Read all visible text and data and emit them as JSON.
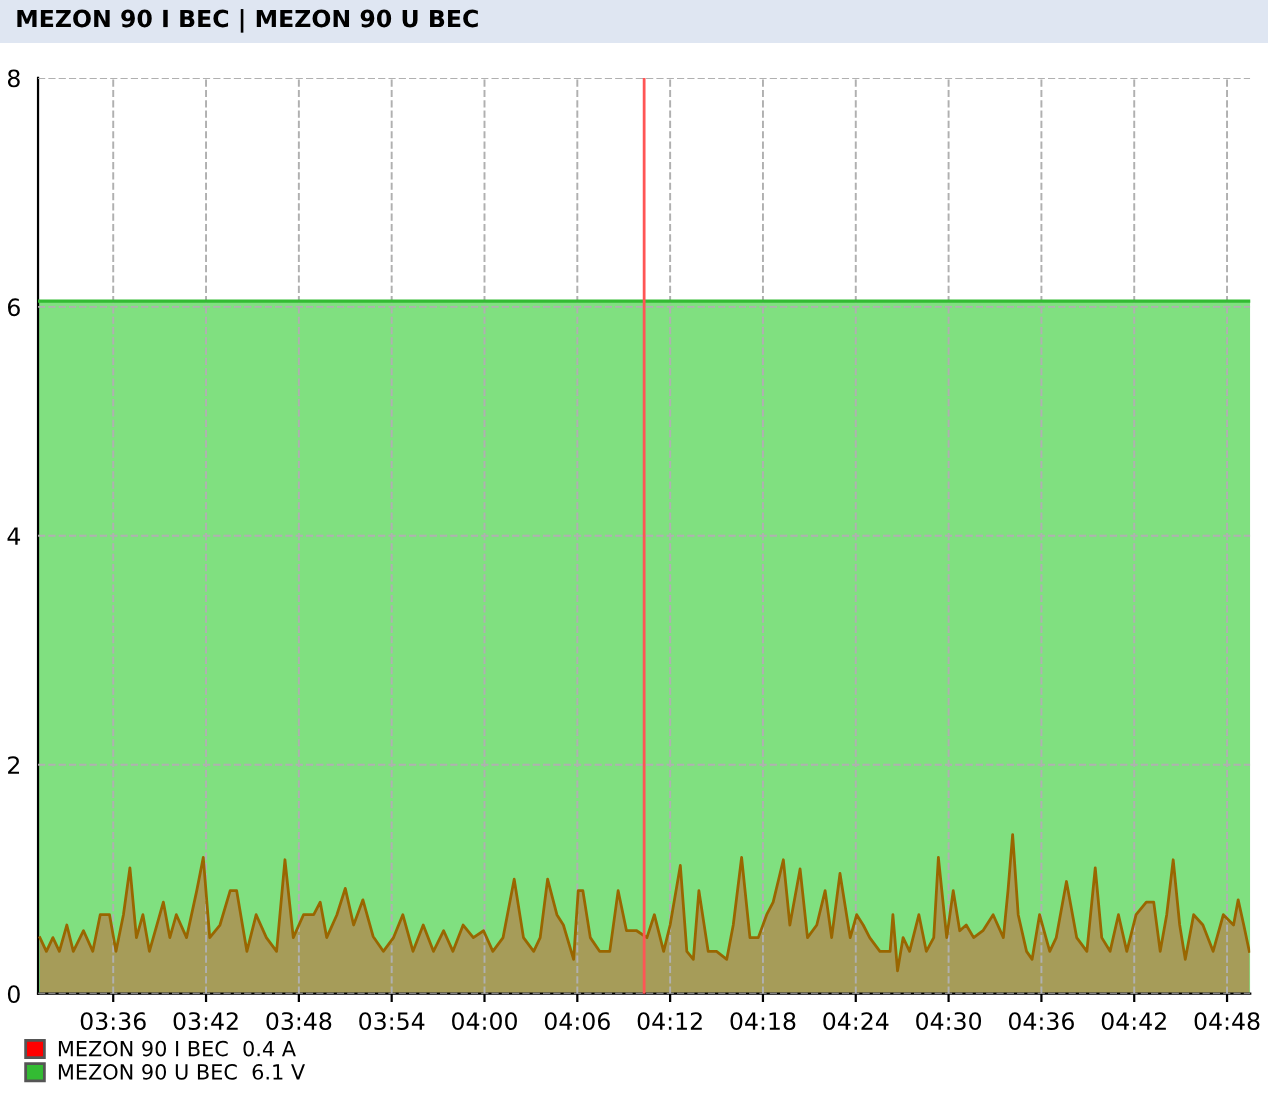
{
  "chart_data": {
    "type": "area",
    "title": "MEZON 90 I BEC | MEZON 90 U BEC",
    "xlim": [
      3.519,
      4.825
    ],
    "ylim": [
      0,
      8
    ],
    "yticks": [
      0,
      2,
      4,
      6,
      8
    ],
    "xticks": [
      {
        "value": 3.6,
        "label": "03:36"
      },
      {
        "value": 3.7,
        "label": "03:42"
      },
      {
        "value": 3.8,
        "label": "03:48"
      },
      {
        "value": 3.9,
        "label": "03:54"
      },
      {
        "value": 4.0,
        "label": "04:00"
      },
      {
        "value": 4.1,
        "label": "04:06"
      },
      {
        "value": 4.2,
        "label": "04:12"
      },
      {
        "value": 4.3,
        "label": "04:18"
      },
      {
        "value": 4.4,
        "label": "04:24"
      },
      {
        "value": 4.5,
        "label": "04:30"
      },
      {
        "value": 4.6,
        "label": "04:36"
      },
      {
        "value": 4.7,
        "label": "04:42"
      },
      {
        "value": 4.8,
        "label": "04:48"
      }
    ],
    "grid": true,
    "legend": "bottom left",
    "ref_lines": [
      {
        "axis": "x",
        "value": 4.172,
        "color": "#ff5555"
      }
    ],
    "series": [
      {
        "name": "MEZON 90 U BEC  6.1 V",
        "color": "#33bb33",
        "x": [
          3.519,
          4.825
        ],
        "values": [
          6.05,
          6.05
        ]
      },
      {
        "name": "MEZON 90 I BEC  0.4 A",
        "color": "#ff0000",
        "x": [
          3.521,
          3.528,
          3.535,
          3.542,
          3.55,
          3.557,
          3.568,
          3.578,
          3.586,
          3.596,
          3.603,
          3.611,
          3.618,
          3.625,
          3.632,
          3.639,
          3.647,
          3.654,
          3.661,
          3.668,
          3.679,
          3.69,
          3.697,
          3.704,
          3.715,
          3.726,
          3.733,
          3.744,
          3.754,
          3.765,
          3.776,
          3.785,
          3.794,
          3.805,
          3.816,
          3.823,
          3.83,
          3.841,
          3.85,
          3.859,
          3.869,
          3.88,
          3.891,
          3.902,
          3.912,
          3.923,
          3.934,
          3.945,
          3.956,
          3.966,
          3.977,
          3.988,
          3.999,
          4.009,
          4.02,
          4.032,
          4.042,
          4.053,
          4.06,
          4.068,
          4.078,
          4.085,
          4.096,
          4.101,
          4.106,
          4.114,
          4.124,
          4.135,
          4.144,
          4.153,
          4.164,
          4.175,
          4.183,
          4.193,
          4.2,
          4.211,
          4.218,
          4.225,
          4.231,
          4.241,
          4.25,
          4.261,
          4.268,
          4.277,
          4.286,
          4.295,
          4.304,
          4.311,
          4.322,
          4.329,
          4.34,
          4.348,
          4.358,
          4.367,
          4.374,
          4.383,
          4.394,
          4.401,
          4.408,
          4.415,
          4.426,
          4.437,
          4.44,
          4.445,
          4.451,
          4.458,
          4.468,
          4.476,
          4.484,
          4.489,
          4.498,
          4.505,
          4.512,
          4.519,
          4.527,
          4.537,
          4.548,
          4.559,
          4.564,
          4.569,
          4.575,
          4.584,
          4.59,
          4.598,
          4.609,
          4.616,
          4.627,
          4.638,
          4.649,
          4.658,
          4.665,
          4.674,
          4.683,
          4.692,
          4.702,
          4.713,
          4.721,
          4.728,
          4.735,
          4.742,
          4.749,
          4.755,
          4.764,
          4.774,
          4.785,
          4.796,
          4.807,
          4.812,
          4.818,
          4.824
        ],
        "values": [
          0.49,
          0.37,
          0.49,
          0.37,
          0.6,
          0.37,
          0.55,
          0.37,
          0.69,
          0.69,
          0.37,
          0.69,
          1.1,
          0.49,
          0.69,
          0.37,
          0.6,
          0.8,
          0.49,
          0.69,
          0.49,
          0.9,
          1.19,
          0.49,
          0.6,
          0.9,
          0.9,
          0.37,
          0.69,
          0.49,
          0.37,
          1.17,
          0.49,
          0.69,
          0.69,
          0.8,
          0.49,
          0.69,
          0.92,
          0.6,
          0.82,
          0.5,
          0.37,
          0.49,
          0.69,
          0.37,
          0.6,
          0.37,
          0.55,
          0.37,
          0.6,
          0.49,
          0.55,
          0.37,
          0.49,
          1.0,
          0.49,
          0.37,
          0.49,
          1.0,
          0.69,
          0.6,
          0.3,
          0.9,
          0.9,
          0.49,
          0.37,
          0.37,
          0.9,
          0.55,
          0.55,
          0.49,
          0.69,
          0.37,
          0.6,
          1.12,
          0.37,
          0.3,
          0.9,
          0.37,
          0.37,
          0.3,
          0.6,
          1.19,
          0.49,
          0.49,
          0.69,
          0.8,
          1.17,
          0.6,
          1.09,
          0.49,
          0.6,
          0.9,
          0.49,
          1.05,
          0.49,
          0.69,
          0.6,
          0.49,
          0.37,
          0.37,
          0.69,
          0.2,
          0.49,
          0.37,
          0.69,
          0.37,
          0.49,
          1.19,
          0.49,
          0.9,
          0.55,
          0.6,
          0.49,
          0.55,
          0.69,
          0.49,
          0.9,
          1.39,
          0.69,
          0.37,
          0.3,
          0.69,
          0.37,
          0.49,
          0.98,
          0.49,
          0.37,
          1.1,
          0.49,
          0.37,
          0.69,
          0.37,
          0.69,
          0.8,
          0.8,
          0.37,
          0.69,
          1.17,
          0.6,
          0.3,
          0.69,
          0.6,
          0.37,
          0.69,
          0.6,
          0.82,
          0.6,
          0.37
        ]
      }
    ]
  }
}
